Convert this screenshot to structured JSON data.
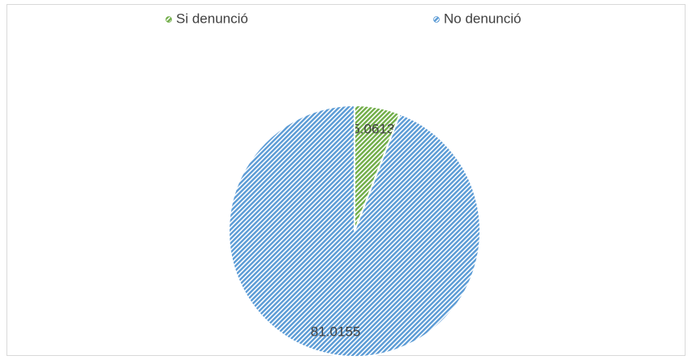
{
  "chart_data": {
    "type": "pie",
    "categories": [
      "Si denunció",
      "No denunció"
    ],
    "values": [
      5.0613,
      81.0155
    ],
    "colors": [
      "#70ad47",
      "#5b9bd5"
    ],
    "legend": "top"
  }
}
